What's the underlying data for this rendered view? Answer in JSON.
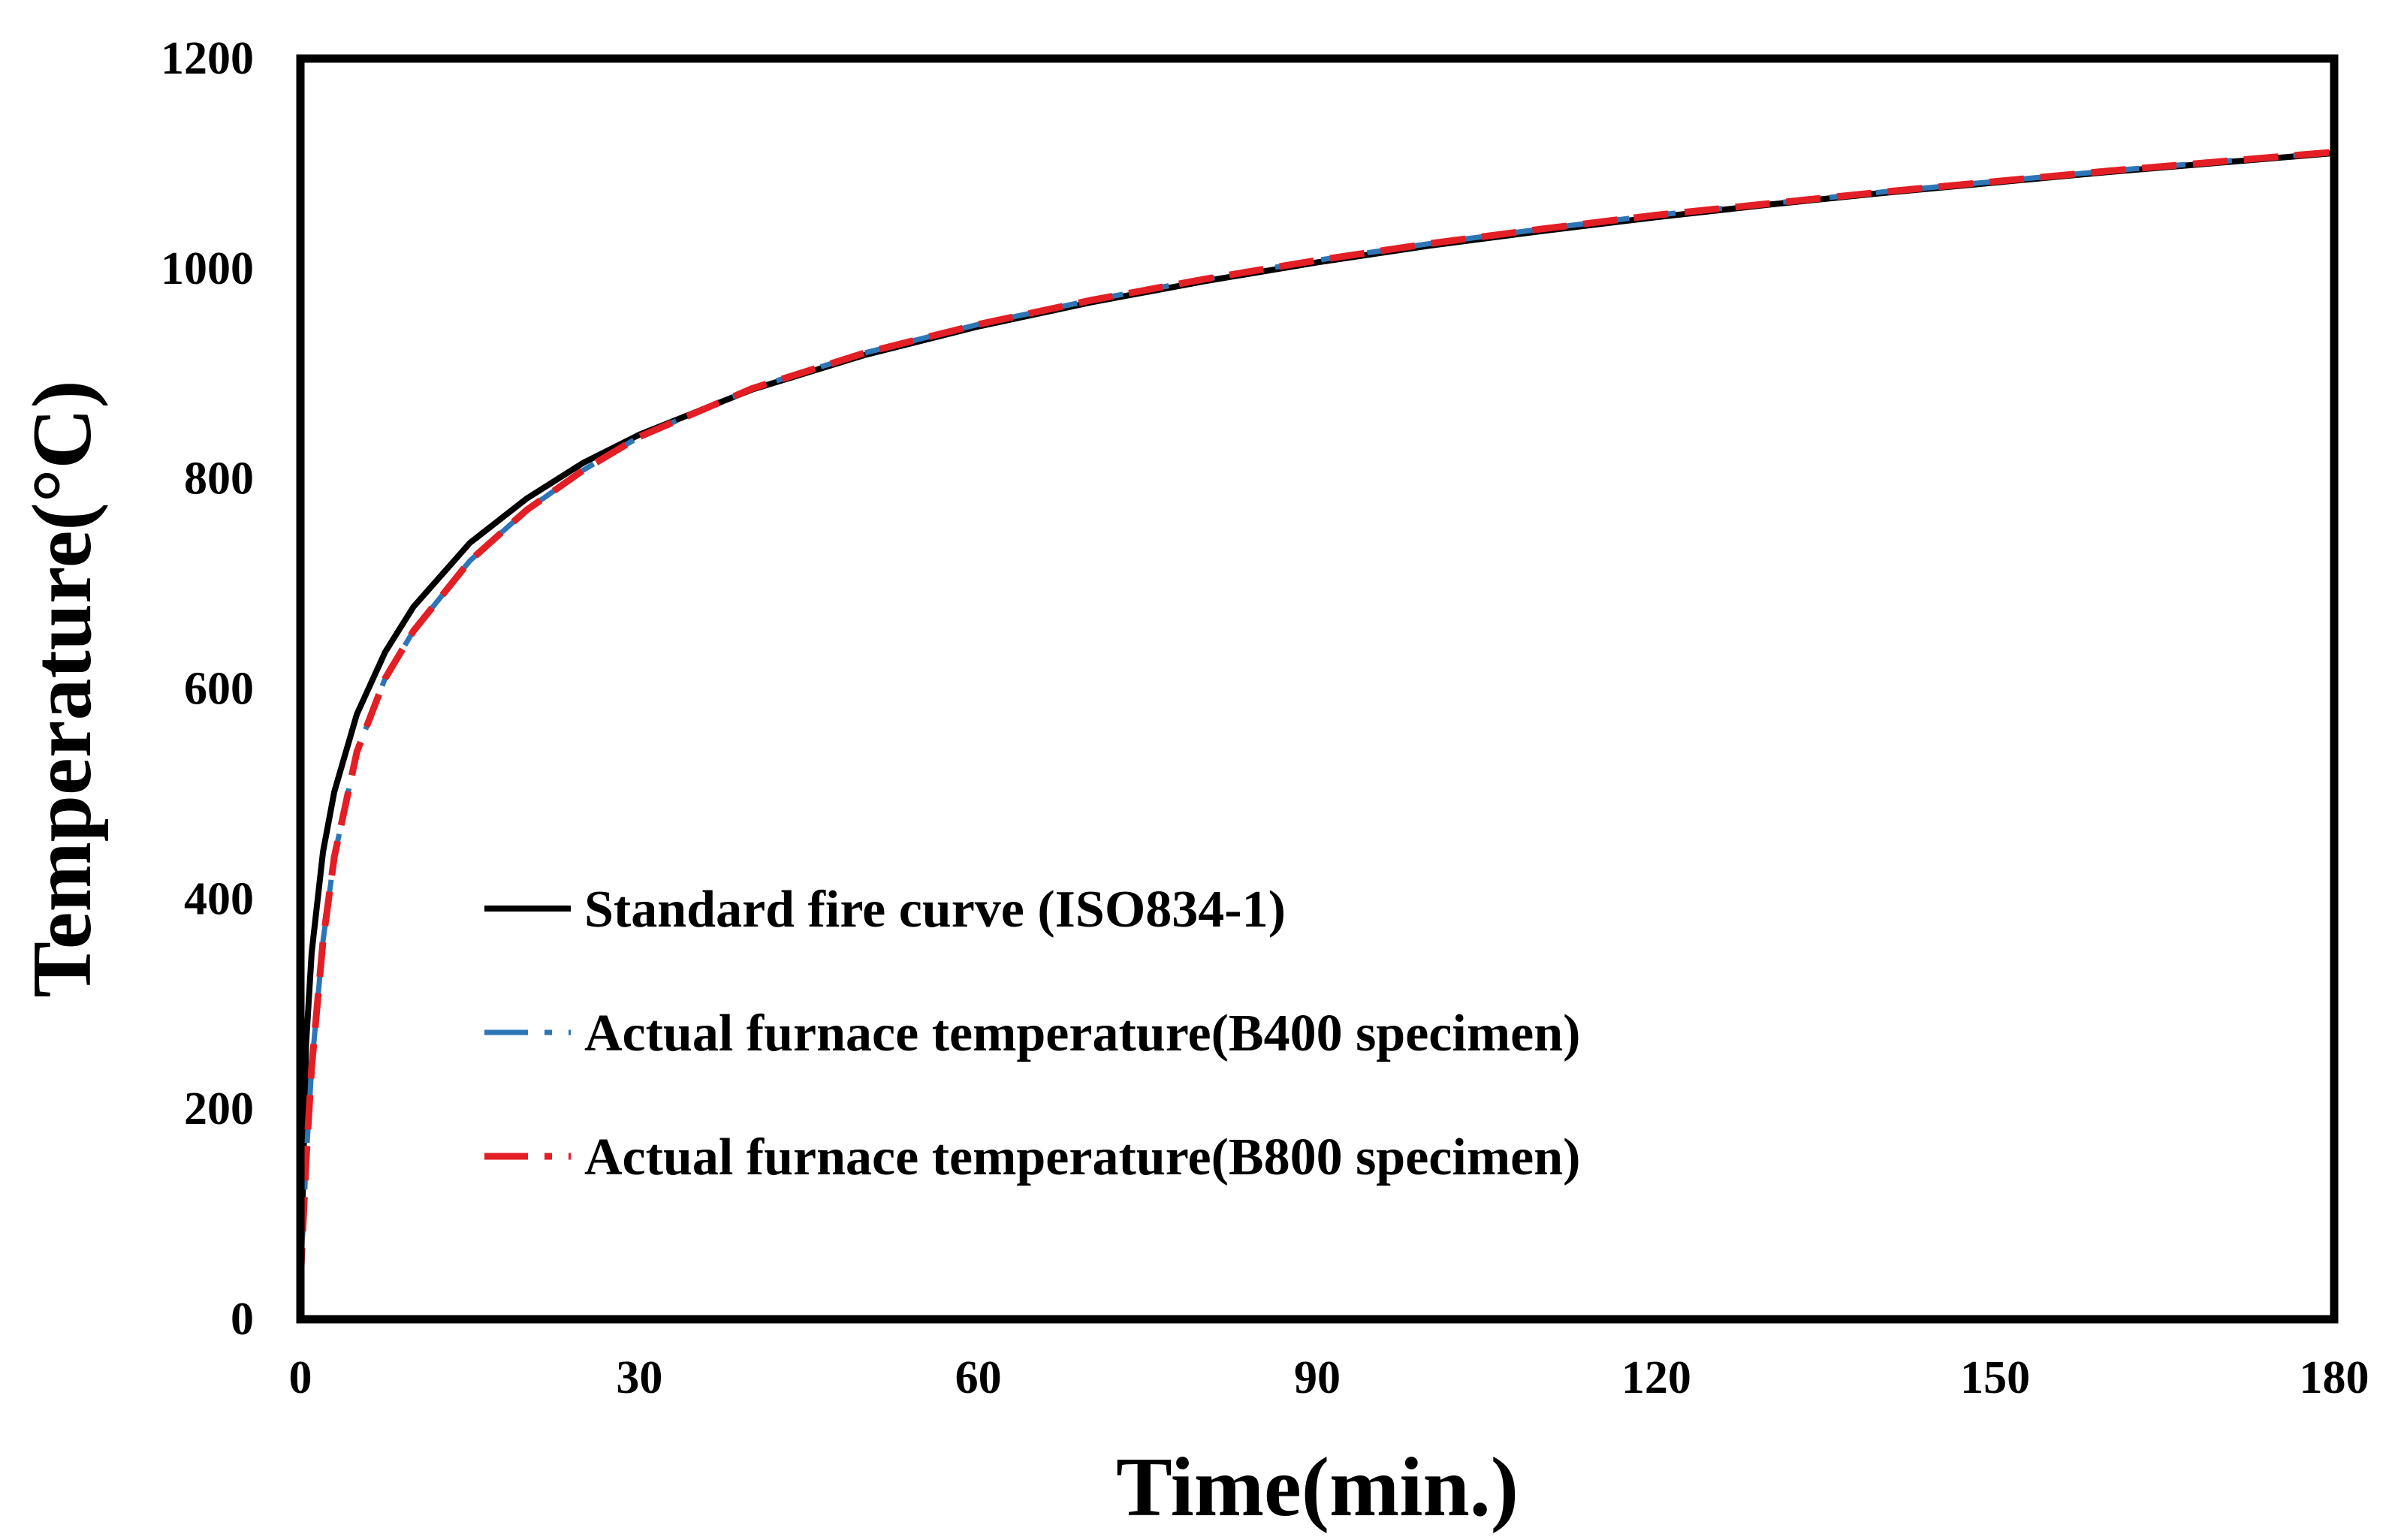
{
  "chart_data": {
    "type": "line",
    "xlabel": "Time(min.)",
    "ylabel": "Temperature(°C)",
    "xlim": [
      0,
      180
    ],
    "ylim": [
      0,
      1200
    ],
    "xticks": [
      0,
      30,
      60,
      90,
      120,
      150,
      180
    ],
    "yticks": [
      0,
      200,
      400,
      600,
      800,
      1000,
      1200
    ],
    "grid": false,
    "legend_position": "center-left",
    "series": [
      {
        "name": "Standard fire curve (ISO834-1)",
        "color": "#000000",
        "style": "solid",
        "x": [
          0,
          0.5,
          1,
          2,
          3,
          5,
          7.5,
          10,
          15,
          20,
          25,
          30,
          40,
          50,
          60,
          70,
          80,
          90,
          100,
          110,
          120,
          130,
          140,
          150,
          160,
          170,
          180
        ],
        "y": [
          20,
          261,
          349,
          445,
          502,
          576,
          635,
          678,
          739,
          781,
          815,
          842,
          885,
          918,
          945,
          968,
          988,
          1006,
          1022,
          1036,
          1049,
          1061,
          1072,
          1082,
          1092,
          1101,
          1110
        ]
      },
      {
        "name": "Actual furnace temperature(B400 specimen)",
        "color": "#2E75B6",
        "style": "dashed",
        "x": [
          0,
          0.5,
          1,
          2,
          3,
          5,
          7.5,
          10,
          15,
          20,
          25,
          30,
          40,
          50,
          60,
          70,
          80,
          90,
          100,
          110,
          120,
          130,
          140,
          150,
          160,
          170,
          180
        ],
        "y": [
          35,
          150,
          240,
          360,
          440,
          540,
          610,
          655,
          722,
          770,
          808,
          840,
          886,
          920,
          947,
          970,
          990,
          1008,
          1024,
          1038,
          1051,
          1062,
          1073,
          1083,
          1093,
          1102,
          1111
        ]
      },
      {
        "name": "Actual furnace temperature(B800 specimen)",
        "color": "#E31E24",
        "style": "dashed",
        "x": [
          0,
          0.5,
          1,
          2,
          3,
          5,
          7.5,
          10,
          15,
          20,
          25,
          30,
          40,
          50,
          60,
          70,
          80,
          90,
          100,
          110,
          120,
          130,
          140,
          150,
          160,
          170,
          180
        ],
        "y": [
          35,
          150,
          240,
          360,
          440,
          540,
          610,
          655,
          722,
          770,
          808,
          840,
          886,
          920,
          947,
          970,
          990,
          1008,
          1024,
          1038,
          1051,
          1062,
          1073,
          1083,
          1093,
          1102,
          1111
        ]
      }
    ]
  }
}
